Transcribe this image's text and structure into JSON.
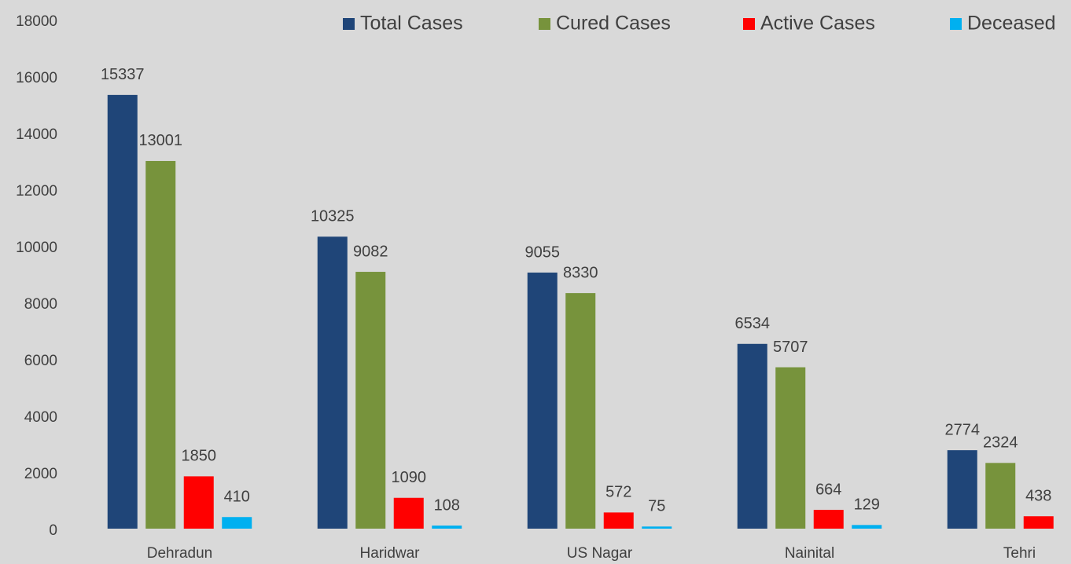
{
  "chart_data": {
    "type": "bar",
    "categories": [
      "Dehradun",
      "Haridwar",
      "US Nagar",
      "Nainital",
      "Tehri"
    ],
    "series": [
      {
        "name": "Total Cases",
        "color": "#1f4578",
        "values": [
          15337,
          10325,
          9055,
          6534,
          2774
        ]
      },
      {
        "name": "Cured Cases",
        "color": "#77933c",
        "values": [
          13001,
          9082,
          8330,
          5707,
          2324
        ]
      },
      {
        "name": "Active Cases",
        "color": "#ff0000",
        "values": [
          1850,
          1090,
          572,
          664,
          438
        ]
      },
      {
        "name": "Deceased",
        "color": "#00b0f0",
        "values": [
          410,
          108,
          75,
          129,
          null
        ]
      }
    ],
    "ylim": [
      0,
      18000
    ],
    "yticks": [
      0,
      2000,
      4000,
      6000,
      8000,
      10000,
      12000,
      14000,
      16000,
      18000
    ],
    "grid": false,
    "legend": "top"
  }
}
